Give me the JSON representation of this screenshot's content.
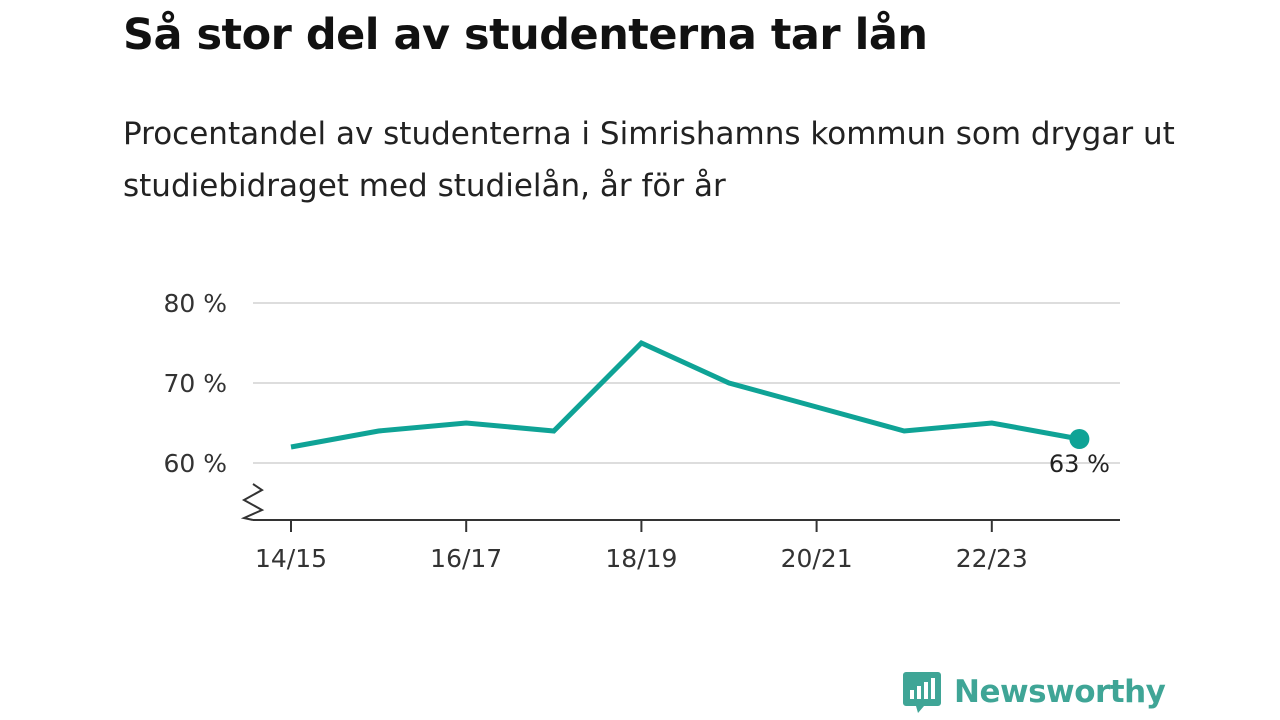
{
  "header": {
    "title": "Så stor del av studenterna tar lån",
    "subtitle": "Procentandel av studenterna i Simrishamns kommun som drygar ut studiebidraget med studielån, år för år"
  },
  "brand": {
    "name": "Newsworthy",
    "icon": "newsworthy-logo-icon",
    "color": "#3fa596"
  },
  "chart_data": {
    "type": "line",
    "x": [
      "14/15",
      "15/16",
      "16/17",
      "17/18",
      "18/19",
      "19/20",
      "20/21",
      "21/22",
      "22/23",
      "23/24"
    ],
    "series": [
      {
        "values": [
          62,
          64,
          65,
          64,
          75,
          70,
          67,
          64,
          65,
          63
        ],
        "color": "#0fa396"
      }
    ],
    "x_tick_labels": [
      "14/15",
      "16/17",
      "18/19",
      "20/21",
      "22/23"
    ],
    "y_ticks": [
      60,
      70,
      80
    ],
    "y_tick_labels": [
      "60 %",
      "70 %",
      "80 %"
    ],
    "ylim": [
      60,
      80
    ],
    "y_axis_break": true,
    "grid": true,
    "grid_color": "#dddddd",
    "end_label": "63 %"
  }
}
